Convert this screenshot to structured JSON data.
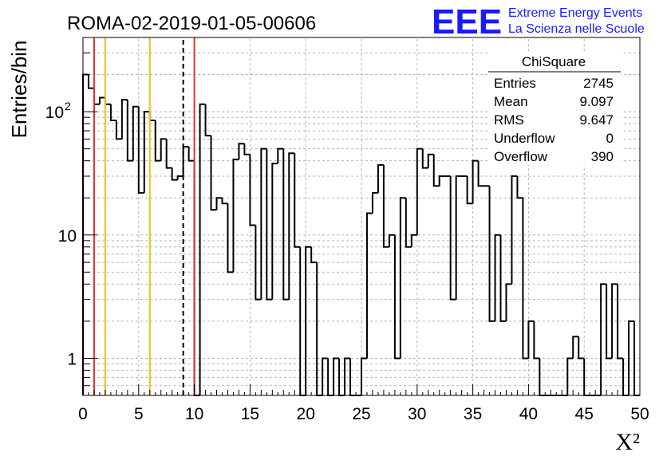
{
  "header": {
    "title": "ROMA-02-2019-01-05-00606",
    "logo_text": "EEE",
    "logo_line1": "Extreme Energy Events",
    "logo_line2": "La Scienza nelle Scuole"
  },
  "stats_box": {
    "title": "ChiSquare",
    "rows": [
      {
        "label": "Entries",
        "value": "2745"
      },
      {
        "label": "Mean",
        "value": "9.097"
      },
      {
        "label": "RMS",
        "value": "9.647"
      },
      {
        "label": "Underflow",
        "value": "0"
      },
      {
        "label": "Overflow",
        "value": "390"
      }
    ]
  },
  "colors": {
    "logo": "#1a1aff",
    "red_line": "#e8322a",
    "yellow_line": "#f2be1f",
    "grid": "#b4b4b4",
    "hist": "#000000"
  },
  "chart_data": {
    "type": "bar",
    "style": "step-histogram",
    "xlabel": "X²",
    "ylabel": "Entries/bin",
    "xlim": [
      0,
      50
    ],
    "ylim": [
      0.5,
      400
    ],
    "y_scale": "log",
    "grid": true,
    "bin_width": 0.5,
    "x_ticks": [
      "0",
      "5",
      "10",
      "15",
      "20",
      "25",
      "30",
      "35",
      "40",
      "45",
      "50"
    ],
    "y_ticks": [
      {
        "value": 1,
        "label": "1"
      },
      {
        "value": 10,
        "label": "10"
      },
      {
        "value": 100,
        "label": "10",
        "exponent": "2"
      }
    ],
    "values": [
      200,
      155,
      115,
      130,
      115,
      85,
      60,
      125,
      40,
      110,
      22,
      100,
      85,
      40,
      60,
      35,
      28,
      30,
      52,
      40,
      0.4,
      115,
      64,
      16,
      20,
      18,
      5,
      41,
      55,
      45,
      12,
      3,
      50,
      3,
      38,
      50,
      3,
      46,
      8,
      0.5,
      8,
      6,
      0.5,
      1,
      0.5,
      1,
      0.5,
      1,
      0.5,
      0.5,
      1,
      15,
      22,
      37,
      8,
      10,
      1,
      20,
      8,
      10,
      50,
      35,
      45,
      25,
      30,
      30,
      3,
      30,
      30,
      18,
      40,
      25,
      25,
      2,
      10,
      2,
      4,
      30,
      20,
      1,
      2,
      1,
      0.5,
      0.5,
      0.5,
      0.5,
      0.5,
      1,
      1.5,
      1,
      0.5,
      0.5,
      0.5,
      4,
      1,
      4,
      1,
      0.5,
      2,
      0.5
    ],
    "vertical_lines": [
      {
        "x": 1,
        "color": "red",
        "style": "solid"
      },
      {
        "x": 2,
        "color": "yellow",
        "style": "solid"
      },
      {
        "x": 6,
        "color": "yellow",
        "style": "solid"
      },
      {
        "x": 9,
        "color": "black",
        "style": "dashed"
      },
      {
        "x": 10,
        "color": "red",
        "style": "solid"
      }
    ]
  }
}
